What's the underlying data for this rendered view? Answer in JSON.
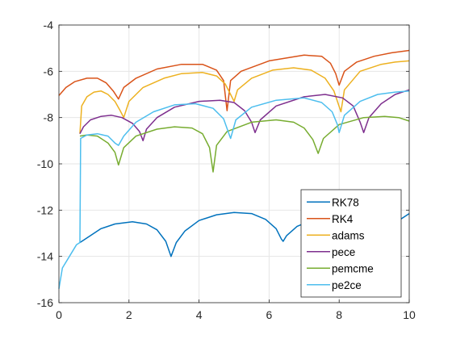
{
  "chart_data": {
    "type": "line",
    "title": "",
    "xlabel": "",
    "ylabel": "",
    "xlim": [
      0,
      10
    ],
    "ylim": [
      -16,
      -4
    ],
    "xticks": [
      0,
      2,
      4,
      6,
      8,
      10
    ],
    "yticks": [
      -16,
      -14,
      -12,
      -10,
      -8,
      -6,
      -4
    ],
    "xtick_labels": [
      "0",
      "2",
      "4",
      "6",
      "8",
      "10"
    ],
    "ytick_labels": [
      "-16",
      "-14",
      "-12",
      "-10",
      "-8",
      "-6",
      "-4"
    ],
    "grid": true,
    "legend_position": "bottom-right",
    "series": [
      {
        "name": "RK78",
        "color": "#0072BD",
        "points": [
          [
            0.6,
            -13.4
          ],
          [
            0.7,
            -13.3
          ],
          [
            0.9,
            -13.1
          ],
          [
            1.2,
            -12.8
          ],
          [
            1.6,
            -12.6
          ],
          [
            2.1,
            -12.5
          ],
          [
            2.5,
            -12.6
          ],
          [
            2.8,
            -12.85
          ],
          [
            3.05,
            -13.35
          ],
          [
            3.2,
            -14.0
          ],
          [
            3.35,
            -13.4
          ],
          [
            3.6,
            -12.9
          ],
          [
            4.0,
            -12.45
          ],
          [
            4.5,
            -12.2
          ],
          [
            5.0,
            -12.1
          ],
          [
            5.5,
            -12.15
          ],
          [
            5.9,
            -12.4
          ],
          [
            6.2,
            -12.8
          ],
          [
            6.35,
            -13.25
          ],
          [
            6.4,
            -13.35
          ],
          [
            6.5,
            -13.1
          ],
          [
            6.8,
            -12.7
          ],
          [
            7.2,
            -12.45
          ],
          [
            7.7,
            -12.4
          ],
          [
            8.2,
            -12.45
          ],
          [
            8.6,
            -12.6
          ],
          [
            8.9,
            -12.9
          ],
          [
            9.1,
            -13.3
          ],
          [
            9.3,
            -12.9
          ],
          [
            9.6,
            -12.55
          ],
          [
            9.85,
            -12.3
          ],
          [
            10.0,
            -12.15
          ]
        ]
      },
      {
        "name": "RK4",
        "color": "#D95319",
        "points": [
          [
            0.0,
            -7.05
          ],
          [
            0.2,
            -6.7
          ],
          [
            0.45,
            -6.45
          ],
          [
            0.8,
            -6.3
          ],
          [
            1.1,
            -6.3
          ],
          [
            1.35,
            -6.5
          ],
          [
            1.55,
            -6.85
          ],
          [
            1.7,
            -7.2
          ],
          [
            1.85,
            -6.7
          ],
          [
            2.2,
            -6.3
          ],
          [
            2.8,
            -5.9
          ],
          [
            3.5,
            -5.7
          ],
          [
            4.1,
            -5.7
          ],
          [
            4.5,
            -5.95
          ],
          [
            4.7,
            -6.4
          ],
          [
            4.8,
            -7.7
          ],
          [
            4.9,
            -6.4
          ],
          [
            5.2,
            -6.0
          ],
          [
            6.0,
            -5.55
          ],
          [
            7.0,
            -5.3
          ],
          [
            7.5,
            -5.35
          ],
          [
            7.75,
            -5.65
          ],
          [
            7.9,
            -6.1
          ],
          [
            8.0,
            -6.6
          ],
          [
            8.15,
            -6.0
          ],
          [
            8.5,
            -5.6
          ],
          [
            9.0,
            -5.35
          ],
          [
            9.5,
            -5.2
          ],
          [
            10.0,
            -5.1
          ]
        ]
      },
      {
        "name": "adams",
        "color": "#EDB120",
        "points": [
          [
            0.6,
            -8.7
          ],
          [
            0.65,
            -7.5
          ],
          [
            0.8,
            -7.1
          ],
          [
            1.0,
            -6.9
          ],
          [
            1.2,
            -6.85
          ],
          [
            1.4,
            -7.0
          ],
          [
            1.6,
            -7.3
          ],
          [
            1.75,
            -7.7
          ],
          [
            1.85,
            -8.0
          ],
          [
            2.0,
            -7.3
          ],
          [
            2.4,
            -6.7
          ],
          [
            3.0,
            -6.3
          ],
          [
            3.5,
            -6.1
          ],
          [
            4.1,
            -6.05
          ],
          [
            4.5,
            -6.2
          ],
          [
            4.75,
            -6.55
          ],
          [
            4.9,
            -7.0
          ],
          [
            5.0,
            -7.3
          ],
          [
            5.1,
            -6.8
          ],
          [
            5.5,
            -6.3
          ],
          [
            6.1,
            -5.95
          ],
          [
            6.7,
            -5.85
          ],
          [
            7.2,
            -5.95
          ],
          [
            7.6,
            -6.3
          ],
          [
            7.85,
            -6.85
          ],
          [
            8.05,
            -7.75
          ],
          [
            8.15,
            -6.8
          ],
          [
            8.6,
            -6.0
          ],
          [
            9.2,
            -5.7
          ],
          [
            9.6,
            -5.6
          ],
          [
            10.0,
            -5.55
          ]
        ]
      },
      {
        "name": "pece",
        "color": "#7E2F8E",
        "points": [
          [
            0.6,
            -8.7
          ],
          [
            0.7,
            -8.4
          ],
          [
            0.9,
            -8.1
          ],
          [
            1.2,
            -7.95
          ],
          [
            1.5,
            -7.9
          ],
          [
            1.8,
            -8.0
          ],
          [
            2.1,
            -8.25
          ],
          [
            2.3,
            -8.6
          ],
          [
            2.4,
            -9.0
          ],
          [
            2.5,
            -8.5
          ],
          [
            2.8,
            -8.0
          ],
          [
            3.3,
            -7.55
          ],
          [
            4.0,
            -7.3
          ],
          [
            4.6,
            -7.25
          ],
          [
            5.0,
            -7.35
          ],
          [
            5.3,
            -7.7
          ],
          [
            5.5,
            -8.2
          ],
          [
            5.6,
            -8.65
          ],
          [
            5.75,
            -8.1
          ],
          [
            6.2,
            -7.5
          ],
          [
            7.0,
            -7.1
          ],
          [
            7.6,
            -7.0
          ],
          [
            8.1,
            -7.15
          ],
          [
            8.4,
            -7.5
          ],
          [
            8.6,
            -8.2
          ],
          [
            8.7,
            -8.65
          ],
          [
            8.85,
            -8.0
          ],
          [
            9.2,
            -7.4
          ],
          [
            9.6,
            -7.0
          ],
          [
            10.0,
            -6.8
          ]
        ]
      },
      {
        "name": "pemcme",
        "color": "#77AC30",
        "points": [
          [
            0.6,
            -8.8
          ],
          [
            0.8,
            -8.75
          ],
          [
            1.1,
            -8.8
          ],
          [
            1.4,
            -9.1
          ],
          [
            1.6,
            -9.5
          ],
          [
            1.7,
            -10.05
          ],
          [
            1.85,
            -9.3
          ],
          [
            2.2,
            -8.8
          ],
          [
            2.8,
            -8.5
          ],
          [
            3.3,
            -8.4
          ],
          [
            3.8,
            -8.45
          ],
          [
            4.1,
            -8.7
          ],
          [
            4.3,
            -9.3
          ],
          [
            4.4,
            -10.35
          ],
          [
            4.5,
            -9.2
          ],
          [
            4.8,
            -8.6
          ],
          [
            5.5,
            -8.2
          ],
          [
            6.2,
            -8.1
          ],
          [
            6.7,
            -8.2
          ],
          [
            7.0,
            -8.45
          ],
          [
            7.25,
            -8.95
          ],
          [
            7.4,
            -9.55
          ],
          [
            7.55,
            -8.9
          ],
          [
            8.0,
            -8.3
          ],
          [
            8.7,
            -8.0
          ],
          [
            9.3,
            -7.95
          ],
          [
            9.7,
            -8.0
          ],
          [
            10.0,
            -8.15
          ]
        ]
      },
      {
        "name": "pe2ce",
        "color": "#4DBEEE",
        "points": [
          [
            0.0,
            -15.4
          ],
          [
            0.1,
            -14.5
          ],
          [
            0.3,
            -14.0
          ],
          [
            0.5,
            -13.5
          ],
          [
            0.6,
            -13.4
          ],
          [
            0.62,
            -8.9
          ],
          [
            0.8,
            -8.75
          ],
          [
            1.1,
            -8.7
          ],
          [
            1.4,
            -8.8
          ],
          [
            1.6,
            -9.1
          ],
          [
            1.7,
            -9.2
          ],
          [
            1.85,
            -8.8
          ],
          [
            2.2,
            -8.2
          ],
          [
            2.7,
            -7.75
          ],
          [
            3.3,
            -7.45
          ],
          [
            3.9,
            -7.4
          ],
          [
            4.4,
            -7.6
          ],
          [
            4.7,
            -8.05
          ],
          [
            4.9,
            -8.9
          ],
          [
            5.05,
            -8.1
          ],
          [
            5.5,
            -7.55
          ],
          [
            6.2,
            -7.25
          ],
          [
            7.0,
            -7.15
          ],
          [
            7.5,
            -7.35
          ],
          [
            7.8,
            -7.75
          ],
          [
            7.95,
            -8.3
          ],
          [
            8.0,
            -8.65
          ],
          [
            8.15,
            -7.9
          ],
          [
            8.6,
            -7.3
          ],
          [
            9.1,
            -7.0
          ],
          [
            9.6,
            -6.9
          ],
          [
            10.0,
            -6.85
          ]
        ]
      }
    ]
  }
}
